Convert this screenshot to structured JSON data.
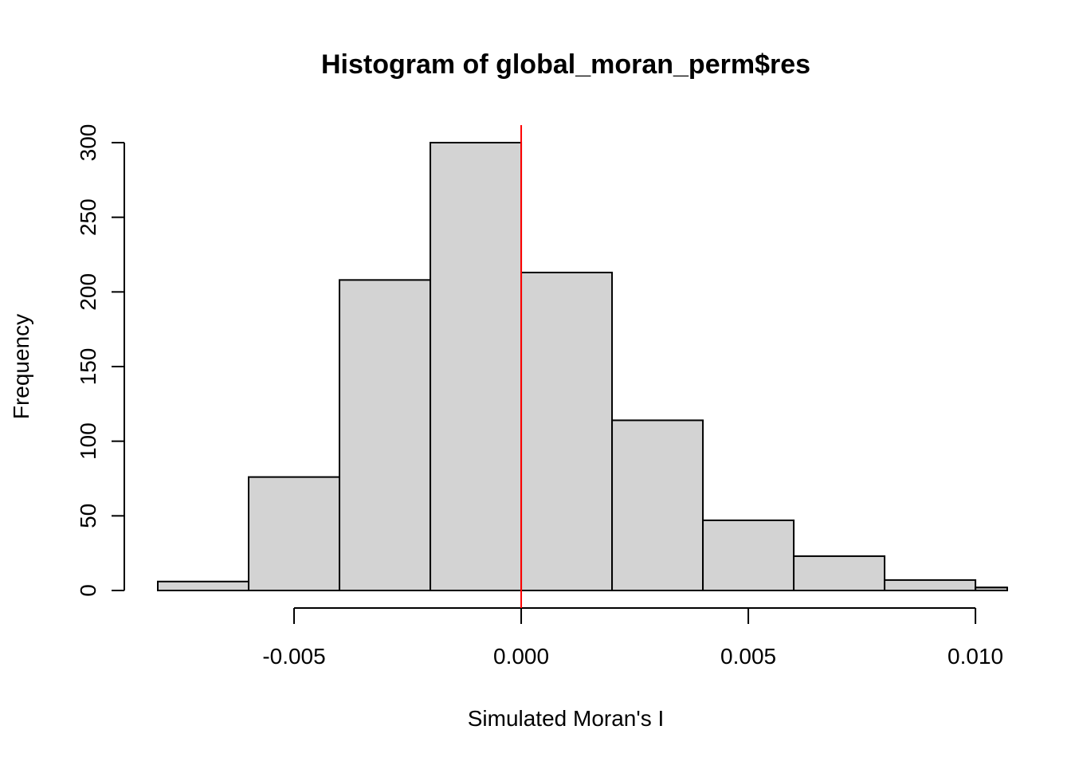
{
  "chart_data": {
    "type": "bar",
    "title": "Histogram of global_moran_perm$res",
    "xlabel": "Simulated Moran's I",
    "ylabel": "Frequency",
    "bins": [
      {
        "from": -0.008,
        "to": -0.006,
        "count": 6
      },
      {
        "from": -0.006,
        "to": -0.004,
        "count": 76
      },
      {
        "from": -0.004,
        "to": -0.002,
        "count": 208
      },
      {
        "from": -0.002,
        "to": 0.0,
        "count": 300
      },
      {
        "from": 0.0,
        "to": 0.002,
        "count": 213
      },
      {
        "from": 0.002,
        "to": 0.004,
        "count": 114
      },
      {
        "from": 0.004,
        "to": 0.006,
        "count": 47
      },
      {
        "from": 0.006,
        "to": 0.008,
        "count": 23
      },
      {
        "from": 0.008,
        "to": 0.01,
        "count": 7
      },
      {
        "from": 0.01,
        "to": 0.012,
        "count": 2
      }
    ],
    "xlim": [
      -0.008,
      0.0107
    ],
    "ylim": [
      0,
      300
    ],
    "x_ticks": [
      {
        "value": -0.005,
        "label": "-0.005"
      },
      {
        "value": 0.0,
        "label": "0.000"
      },
      {
        "value": 0.005,
        "label": "0.005"
      },
      {
        "value": 0.01,
        "label": "0.010"
      }
    ],
    "y_ticks": [
      {
        "value": 0,
        "label": "0"
      },
      {
        "value": 50,
        "label": "50"
      },
      {
        "value": 100,
        "label": "100"
      },
      {
        "value": 150,
        "label": "150"
      },
      {
        "value": 200,
        "label": "200"
      },
      {
        "value": 250,
        "label": "250"
      },
      {
        "value": 300,
        "label": "300"
      }
    ],
    "reference_line": {
      "x": 0.0,
      "color": "#ff0000"
    },
    "bar_fill": "#d3d3d3",
    "grid": false
  }
}
